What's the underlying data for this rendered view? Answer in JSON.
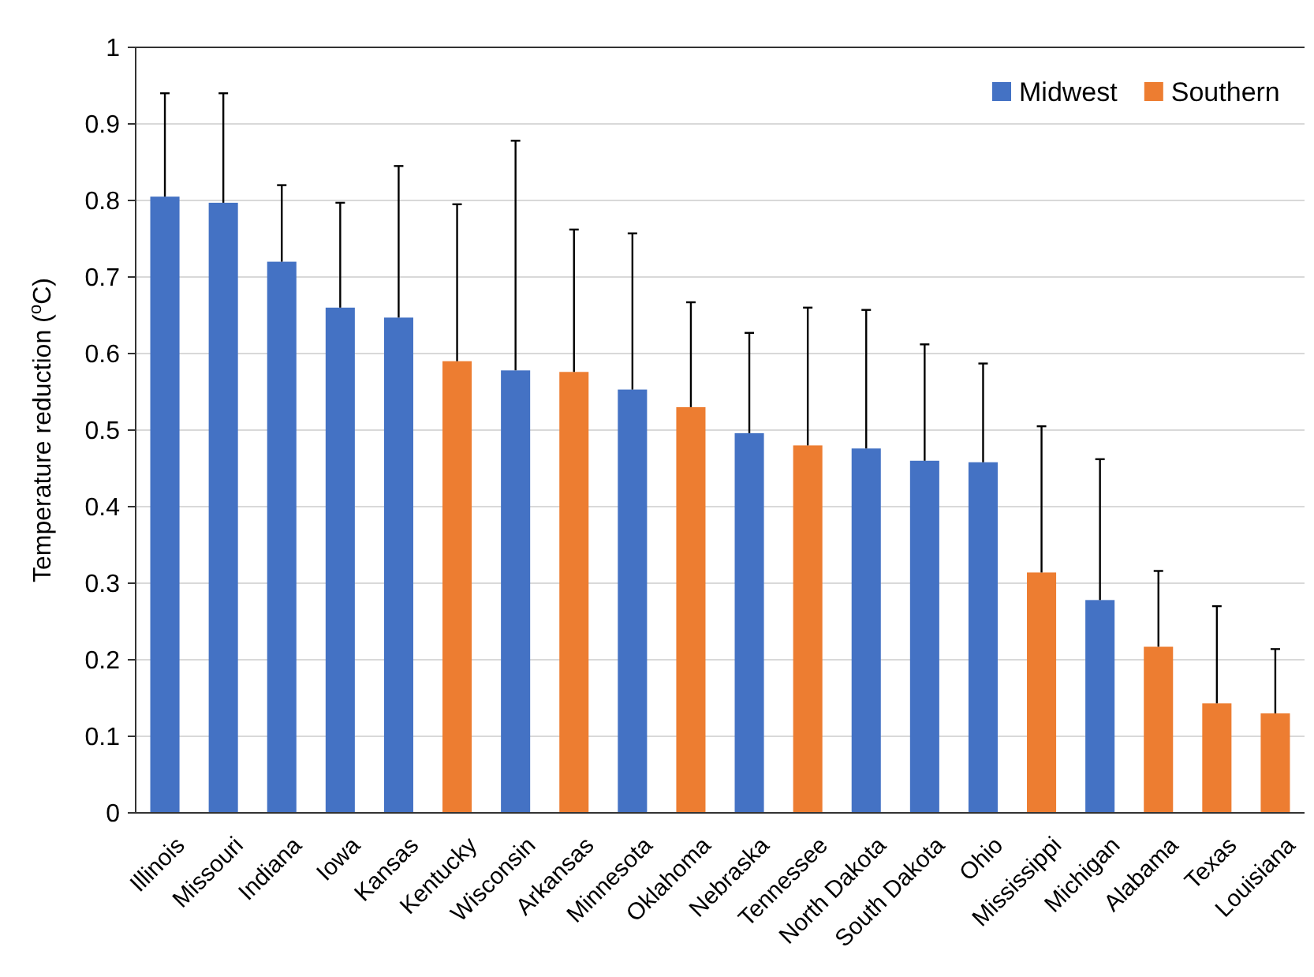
{
  "chart_data": {
    "type": "bar",
    "ylabel": "Temperature reduction ($^{o}$C)",
    "categories": [
      "Illinois",
      "Missouri",
      "Indiana",
      "Iowa",
      "Kansas",
      "Kentucky",
      "Wisconsin",
      "Arkansas",
      "Minnesota",
      "Oklahoma",
      "Nebraska",
      "Tennessee",
      "North Dakota",
      "South Dakota",
      "Ohio",
      "Mississippi",
      "Michigan",
      "Alabama",
      "Texas",
      "Louisiana"
    ],
    "series": [
      {
        "name": "Midwest",
        "color": "#4472c4",
        "values": [
          0.805,
          0.797,
          0.72,
          0.66,
          0.647,
          null,
          0.578,
          null,
          0.553,
          null,
          0.496,
          null,
          0.476,
          0.46,
          0.458,
          null,
          0.278,
          null,
          null,
          null
        ],
        "errors": [
          [
            0.805,
            0.94
          ],
          [
            0.797,
            0.94
          ],
          [
            0.72,
            0.82
          ],
          [
            0.66,
            0.797
          ],
          [
            0.647,
            0.845
          ],
          null,
          [
            0.578,
            0.878
          ],
          null,
          [
            0.553,
            0.757
          ],
          null,
          [
            0.496,
            0.627
          ],
          null,
          [
            0.476,
            0.657
          ],
          [
            0.46,
            0.612
          ],
          [
            0.458,
            0.587
          ],
          null,
          [
            0.278,
            0.462
          ],
          null,
          null,
          null
        ]
      },
      {
        "name": "Southern",
        "color": "#ed7d31",
        "values": [
          null,
          null,
          null,
          null,
          null,
          0.59,
          null,
          0.576,
          null,
          0.53,
          null,
          0.48,
          null,
          null,
          null,
          0.314,
          null,
          0.217,
          0.143,
          0.13
        ],
        "errors": [
          null,
          null,
          null,
          null,
          null,
          [
            0.59,
            0.795
          ],
          null,
          [
            0.576,
            0.762
          ],
          null,
          [
            0.53,
            0.667
          ],
          null,
          [
            0.48,
            0.66
          ],
          null,
          null,
          null,
          [
            0.314,
            0.505
          ],
          null,
          [
            0.217,
            0.316
          ],
          [
            0.143,
            0.27
          ],
          [
            0.13,
            0.214
          ]
        ]
      }
    ],
    "ylim": [
      0,
      1
    ],
    "yticks": [
      0,
      0.1,
      0.2,
      0.3,
      0.4,
      0.5,
      0.6,
      0.7,
      0.8,
      0.9,
      1
    ],
    "grid": "y",
    "legend": "top right"
  }
}
